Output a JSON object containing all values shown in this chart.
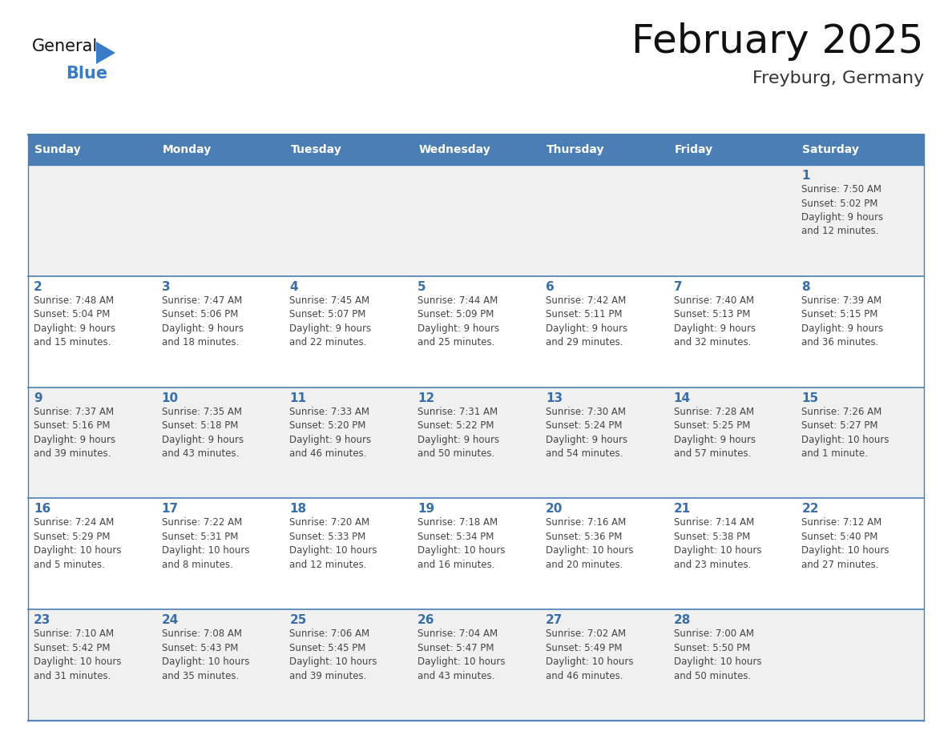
{
  "title": "February 2025",
  "subtitle": "Freyburg, Germany",
  "days_of_week": [
    "Sunday",
    "Monday",
    "Tuesday",
    "Wednesday",
    "Thursday",
    "Friday",
    "Saturday"
  ],
  "header_bg": "#4a7eb5",
  "header_text_color": "#ffffff",
  "row_bg": [
    "#f0f0f0",
    "#ffffff",
    "#f0f0f0",
    "#ffffff",
    "#f0f0f0"
  ],
  "day_number_color": "#3a6ea8",
  "text_color": "#444444",
  "border_color": "#4a7eb5",
  "line_color": "#4a7eb5",
  "title_color": "#111111",
  "subtitle_color": "#333333",
  "logo_general_color": "#111111",
  "logo_blue_color": "#3a7bc8",
  "calendar_data": [
    [
      {
        "day": null,
        "info": ""
      },
      {
        "day": null,
        "info": ""
      },
      {
        "day": null,
        "info": ""
      },
      {
        "day": null,
        "info": ""
      },
      {
        "day": null,
        "info": ""
      },
      {
        "day": null,
        "info": ""
      },
      {
        "day": 1,
        "info": "Sunrise: 7:50 AM\nSunset: 5:02 PM\nDaylight: 9 hours\nand 12 minutes."
      }
    ],
    [
      {
        "day": 2,
        "info": "Sunrise: 7:48 AM\nSunset: 5:04 PM\nDaylight: 9 hours\nand 15 minutes."
      },
      {
        "day": 3,
        "info": "Sunrise: 7:47 AM\nSunset: 5:06 PM\nDaylight: 9 hours\nand 18 minutes."
      },
      {
        "day": 4,
        "info": "Sunrise: 7:45 AM\nSunset: 5:07 PM\nDaylight: 9 hours\nand 22 minutes."
      },
      {
        "day": 5,
        "info": "Sunrise: 7:44 AM\nSunset: 5:09 PM\nDaylight: 9 hours\nand 25 minutes."
      },
      {
        "day": 6,
        "info": "Sunrise: 7:42 AM\nSunset: 5:11 PM\nDaylight: 9 hours\nand 29 minutes."
      },
      {
        "day": 7,
        "info": "Sunrise: 7:40 AM\nSunset: 5:13 PM\nDaylight: 9 hours\nand 32 minutes."
      },
      {
        "day": 8,
        "info": "Sunrise: 7:39 AM\nSunset: 5:15 PM\nDaylight: 9 hours\nand 36 minutes."
      }
    ],
    [
      {
        "day": 9,
        "info": "Sunrise: 7:37 AM\nSunset: 5:16 PM\nDaylight: 9 hours\nand 39 minutes."
      },
      {
        "day": 10,
        "info": "Sunrise: 7:35 AM\nSunset: 5:18 PM\nDaylight: 9 hours\nand 43 minutes."
      },
      {
        "day": 11,
        "info": "Sunrise: 7:33 AM\nSunset: 5:20 PM\nDaylight: 9 hours\nand 46 minutes."
      },
      {
        "day": 12,
        "info": "Sunrise: 7:31 AM\nSunset: 5:22 PM\nDaylight: 9 hours\nand 50 minutes."
      },
      {
        "day": 13,
        "info": "Sunrise: 7:30 AM\nSunset: 5:24 PM\nDaylight: 9 hours\nand 54 minutes."
      },
      {
        "day": 14,
        "info": "Sunrise: 7:28 AM\nSunset: 5:25 PM\nDaylight: 9 hours\nand 57 minutes."
      },
      {
        "day": 15,
        "info": "Sunrise: 7:26 AM\nSunset: 5:27 PM\nDaylight: 10 hours\nand 1 minute."
      }
    ],
    [
      {
        "day": 16,
        "info": "Sunrise: 7:24 AM\nSunset: 5:29 PM\nDaylight: 10 hours\nand 5 minutes."
      },
      {
        "day": 17,
        "info": "Sunrise: 7:22 AM\nSunset: 5:31 PM\nDaylight: 10 hours\nand 8 minutes."
      },
      {
        "day": 18,
        "info": "Sunrise: 7:20 AM\nSunset: 5:33 PM\nDaylight: 10 hours\nand 12 minutes."
      },
      {
        "day": 19,
        "info": "Sunrise: 7:18 AM\nSunset: 5:34 PM\nDaylight: 10 hours\nand 16 minutes."
      },
      {
        "day": 20,
        "info": "Sunrise: 7:16 AM\nSunset: 5:36 PM\nDaylight: 10 hours\nand 20 minutes."
      },
      {
        "day": 21,
        "info": "Sunrise: 7:14 AM\nSunset: 5:38 PM\nDaylight: 10 hours\nand 23 minutes."
      },
      {
        "day": 22,
        "info": "Sunrise: 7:12 AM\nSunset: 5:40 PM\nDaylight: 10 hours\nand 27 minutes."
      }
    ],
    [
      {
        "day": 23,
        "info": "Sunrise: 7:10 AM\nSunset: 5:42 PM\nDaylight: 10 hours\nand 31 minutes."
      },
      {
        "day": 24,
        "info": "Sunrise: 7:08 AM\nSunset: 5:43 PM\nDaylight: 10 hours\nand 35 minutes."
      },
      {
        "day": 25,
        "info": "Sunrise: 7:06 AM\nSunset: 5:45 PM\nDaylight: 10 hours\nand 39 minutes."
      },
      {
        "day": 26,
        "info": "Sunrise: 7:04 AM\nSunset: 5:47 PM\nDaylight: 10 hours\nand 43 minutes."
      },
      {
        "day": 27,
        "info": "Sunrise: 7:02 AM\nSunset: 5:49 PM\nDaylight: 10 hours\nand 46 minutes."
      },
      {
        "day": 28,
        "info": "Sunrise: 7:00 AM\nSunset: 5:50 PM\nDaylight: 10 hours\nand 50 minutes."
      },
      {
        "day": null,
        "info": ""
      }
    ]
  ]
}
